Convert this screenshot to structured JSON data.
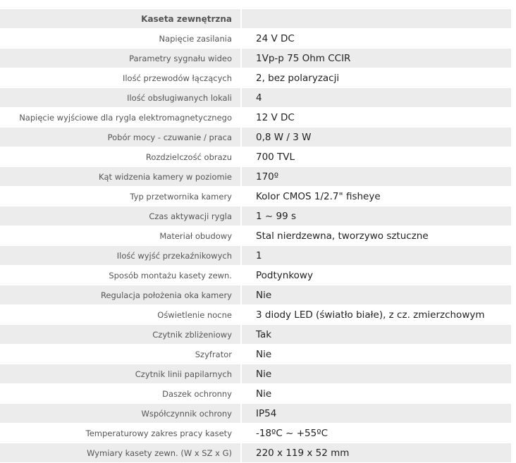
{
  "header": {
    "title": "Kaseta zewnętrzna",
    "value": ""
  },
  "rows": [
    {
      "label": "Napięcie zasilania",
      "value": "24 V DC"
    },
    {
      "label": "Parametry sygnału wideo",
      "value": "1Vp-p 75 Ohm CCIR"
    },
    {
      "label": "Ilość przewodów łączących",
      "value": "2, bez polaryzacji"
    },
    {
      "label": "Ilość obsługiwanych lokali",
      "value": "4"
    },
    {
      "label": "Napięcie wyjściowe dla rygla elektromagnetycznego",
      "value": "12 V DC"
    },
    {
      "label": "Pobór mocy - czuwanie / praca",
      "value": "0,8 W / 3 W"
    },
    {
      "label": "Rozdzielczość obrazu",
      "value": "700 TVL"
    },
    {
      "label": "Kąt widzenia kamery w poziomie",
      "value": "170º"
    },
    {
      "label": "Typ przetwornika kamery",
      "value": "Kolor CMOS 1/2.7\" fisheye"
    },
    {
      "label": "Czas aktywacji rygla",
      "value": "1 ~ 99 s"
    },
    {
      "label": "Materiał obudowy",
      "value": "Stal nierdzewna, tworzywo sztuczne"
    },
    {
      "label": "Ilość wyjść przekaźnikowych",
      "value": "1"
    },
    {
      "label": "Sposób montażu kasety zewn.",
      "value": "Podtynkowy"
    },
    {
      "label": "Regulacja położenia oka kamery",
      "value": "Nie"
    },
    {
      "label": "Oświetlenie nocne",
      "value": "3 diody LED (światło białe), z cz. zmierzchowym"
    },
    {
      "label": "Czytnik zbliżeniowy",
      "value": "Tak"
    },
    {
      "label": "Szyfrator",
      "value": "Nie"
    },
    {
      "label": "Czytnik linii papilarnych",
      "value": "Nie"
    },
    {
      "label": "Daszek ochronny",
      "value": "Nie"
    },
    {
      "label": "Współczynnik ochrony",
      "value": "IP54"
    },
    {
      "label": "Temperaturowy zakres pracy kasety",
      "value": "-18ºC ~ +55ºC"
    },
    {
      "label": "Wymiary kasety zewn. (W x SZ x G)",
      "value": "220 x 119 x 52 mm"
    }
  ]
}
